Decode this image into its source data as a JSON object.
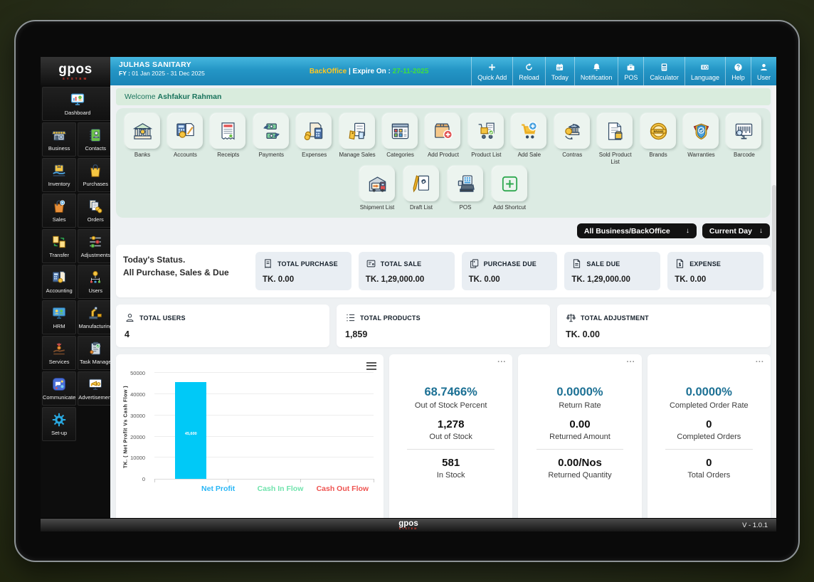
{
  "brand": {
    "name": "gpos",
    "system": "SYSTEM"
  },
  "header": {
    "company": "JULHAS SANITARY",
    "fiscal_label": "FY :",
    "fiscal_year": "01 Jan 2025 - 31 Dec 2025",
    "mode": "BackOffice",
    "expire_label": "| Expire On :",
    "expire_date": "27-11-2025",
    "buttons": [
      {
        "icon": "plus-icon",
        "label": "Quick Add"
      },
      {
        "icon": "reload-icon",
        "label": "Reload"
      },
      {
        "icon": "calendar-icon",
        "label": "Today"
      },
      {
        "icon": "bell-icon",
        "label": "Notification"
      },
      {
        "icon": "pos-icon",
        "label": "POS"
      },
      {
        "icon": "calculator-icon",
        "label": "Calculator"
      },
      {
        "icon": "language-icon",
        "label": "Language"
      },
      {
        "icon": "help-icon",
        "label": "Help"
      },
      {
        "icon": "user-icon",
        "label": "User"
      }
    ]
  },
  "sidebar": {
    "items": [
      {
        "icon": "dashboard-icon",
        "label": "Dashboard"
      },
      {
        "icon": "business-icon",
        "label": "Business"
      },
      {
        "icon": "contacts-icon",
        "label": "Contacts"
      },
      {
        "icon": "inventory-icon",
        "label": "Inventory"
      },
      {
        "icon": "purchases-icon",
        "label": "Purchases"
      },
      {
        "icon": "sales-icon",
        "label": "Sales"
      },
      {
        "icon": "orders-icon",
        "label": "Orders"
      },
      {
        "icon": "transfer-icon",
        "label": "Transfer"
      },
      {
        "icon": "adjustments-icon",
        "label": "Adjustments"
      },
      {
        "icon": "accounting-icon",
        "label": "Accounting"
      },
      {
        "icon": "users-icon",
        "label": "Users"
      },
      {
        "icon": "hrm-icon",
        "label": "HRM"
      },
      {
        "icon": "manufacturing-icon",
        "label": "Manufacturing"
      },
      {
        "icon": "services-icon",
        "label": "Services"
      },
      {
        "icon": "task-manage-icon",
        "label": "Task Manage"
      },
      {
        "icon": "communicate-icon",
        "label": "Communicate"
      },
      {
        "icon": "advertisement-icon",
        "label": "Advertisement"
      },
      {
        "icon": "setup-icon",
        "label": "Set-up"
      }
    ]
  },
  "welcome": {
    "prefix": "Welcome",
    "user": "Ashfakur Rahman"
  },
  "shortcuts": {
    "row1": [
      {
        "icon": "bank-icon",
        "label": "Banks"
      },
      {
        "icon": "accounts-icon",
        "label": "Accounts"
      },
      {
        "icon": "receipt-icon",
        "label": "Receipts"
      },
      {
        "icon": "payments-icon",
        "label": "Payments"
      },
      {
        "icon": "expenses-icon",
        "label": "Expenses"
      },
      {
        "icon": "manage-sales-icon",
        "label": "Manage Sales"
      },
      {
        "icon": "categories-icon",
        "label": "Categories"
      },
      {
        "icon": "add-product-icon",
        "label": "Add Product"
      },
      {
        "icon": "product-list-icon",
        "label": "Product List"
      },
      {
        "icon": "add-sale-icon",
        "label": "Add Sale"
      },
      {
        "icon": "contras-icon",
        "label": "Contras"
      },
      {
        "icon": "sold-product-list-icon",
        "label": "Sold Product List"
      },
      {
        "icon": "brands-icon",
        "label": "Brands"
      },
      {
        "icon": "warranties-icon",
        "label": "Warranties"
      },
      {
        "icon": "barcode-icon",
        "label": "Barcode"
      }
    ],
    "row2": [
      {
        "icon": "shipment-icon",
        "label": "Shipment List"
      },
      {
        "icon": "draft-icon",
        "label": "Draft List"
      },
      {
        "icon": "pos-machine-icon",
        "label": "POS"
      },
      {
        "icon": "add-shortcut-icon",
        "label": "Add Shortcut"
      }
    ]
  },
  "filters": {
    "business": "All Business/BackOffice",
    "period": "Current Day",
    "arrow": "↓"
  },
  "today_status": {
    "title": "Today's Status.",
    "subtitle": "All Purchase, Sales & Due",
    "cards": [
      {
        "icon": "receipt-sm-icon",
        "label": "TOTAL PURCHASE",
        "value": "TK. 0.00"
      },
      {
        "icon": "invoice-sm-icon",
        "label": "TOTAL SALE",
        "value": "TK. 1,29,000.00"
      },
      {
        "icon": "copy-sm-icon",
        "label": "PURCHASE DUE",
        "value": "TK. 0.00"
      },
      {
        "icon": "doc-sm-icon",
        "label": "SALE DUE",
        "value": "TK. 1,29,000.00"
      },
      {
        "icon": "expense-sm-icon",
        "label": "EXPENSE",
        "value": "TK. 0.00"
      }
    ]
  },
  "totals": [
    {
      "icon": "person-sm-icon",
      "label": "TOTAL USERS",
      "value": "4"
    },
    {
      "icon": "list-sm-icon",
      "label": "TOTAL PRODUCTS",
      "value": "1,859"
    },
    {
      "icon": "scale-sm-icon",
      "label": "TOTAL ADJUSTMENT",
      "value": "TK. 0.00"
    }
  ],
  "chart_data": {
    "type": "bar",
    "categories": [
      "Net Profit",
      "Cash In Flow",
      "Cash Out Flow"
    ],
    "values": [
      45600,
      0,
      0
    ],
    "bar_label": "45,600",
    "series_colors": [
      "#00c9f7",
      "#6fe3ac",
      "#ef5350"
    ],
    "category_label_colors": [
      "#29b6f6",
      "#6fe3ac",
      "#ef5350"
    ],
    "title": "",
    "xlabel": "",
    "ylabel": "TK. ( Net Profit Vs Cash Flow )",
    "ylim": [
      0,
      50000
    ],
    "yticks": [
      0,
      10000,
      20000,
      30000,
      40000,
      50000
    ],
    "grid": true,
    "legend_position": "bottom (category labels act as legend)"
  },
  "stat_cards": [
    {
      "menu": "...",
      "percent": "68.7466%",
      "percent_label": "Out of Stock Percent",
      "mid_value": "1,278",
      "mid_label": "Out of Stock",
      "bottom_value": "581",
      "bottom_label": "In Stock"
    },
    {
      "menu": "...",
      "percent": "0.0000%",
      "percent_label": "Return Rate",
      "mid_value": "0.00",
      "mid_label": "Returned Amount",
      "bottom_value": "0.00/Nos",
      "bottom_label": "Returned Quantity"
    },
    {
      "menu": "...",
      "percent": "0.0000%",
      "percent_label": "Completed Order Rate",
      "mid_value": "0",
      "mid_label": "Completed Orders",
      "bottom_value": "0",
      "bottom_label": "Total Orders"
    }
  ],
  "footer": {
    "version": "V - 1.0.1"
  },
  "colors": {
    "header_blue": "#1b84b8",
    "backoffice_yellow": "#ffc720",
    "expire_green": "#3fe03f",
    "welcome_green": "#19735c",
    "stat_percent_blue": "#1c7094",
    "bar_cyan": "#00c9f7"
  }
}
